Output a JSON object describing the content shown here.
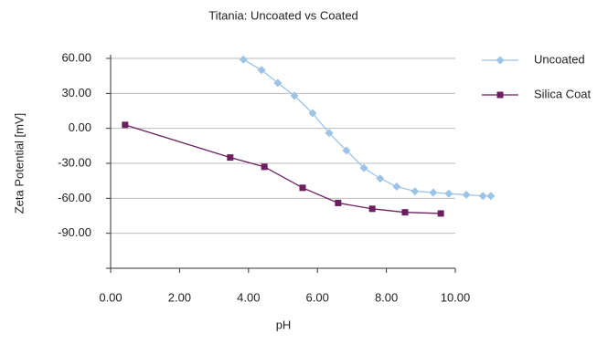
{
  "chart_data": {
    "type": "line",
    "title": "Titania: Uncoated vs Coated",
    "x_label": "pH",
    "y_label": "Zeta Potential [mV]",
    "xlim": [
      0,
      10
    ],
    "ylim": [
      -120,
      60
    ],
    "xticks": [
      {
        "value": 0,
        "label": "0.00"
      },
      {
        "value": 2,
        "label": "2.00"
      },
      {
        "value": 4,
        "label": "4.00"
      },
      {
        "value": 6,
        "label": "6.00"
      },
      {
        "value": 8,
        "label": "8.00"
      },
      {
        "value": 10,
        "label": "10.00"
      }
    ],
    "yticks": [
      {
        "value": 60,
        "label": "60.00"
      },
      {
        "value": 30,
        "label": "30.00"
      },
      {
        "value": 0,
        "label": "0.00"
      },
      {
        "value": -30,
        "label": "-30.00"
      },
      {
        "value": -60,
        "label": "-60.00"
      },
      {
        "value": -90,
        "label": "-90.00"
      }
    ],
    "grid": true,
    "legend": "right",
    "series": [
      {
        "name": "Uncoated",
        "color": "#9dc3e6",
        "marker": "diamond",
        "x": [
          3.85,
          4.38,
          4.85,
          5.33,
          5.86,
          6.34,
          6.84,
          7.35,
          7.82,
          8.3,
          8.83,
          9.36,
          9.81,
          10.32,
          10.8,
          11.03
        ],
        "values": [
          59,
          50,
          39,
          28,
          13,
          -4,
          -19,
          -34,
          -43,
          -50,
          -54,
          -55,
          -56,
          -57,
          -58,
          -58
        ]
      },
      {
        "name": "Silica Coat",
        "color": "#6b1f5e",
        "marker": "square",
        "x": [
          0.42,
          3.47,
          4.46,
          5.57,
          6.6,
          7.59,
          8.54,
          9.58
        ],
        "values": [
          3,
          -25,
          -33,
          -51,
          -64,
          -69,
          -72,
          -73
        ]
      }
    ]
  }
}
